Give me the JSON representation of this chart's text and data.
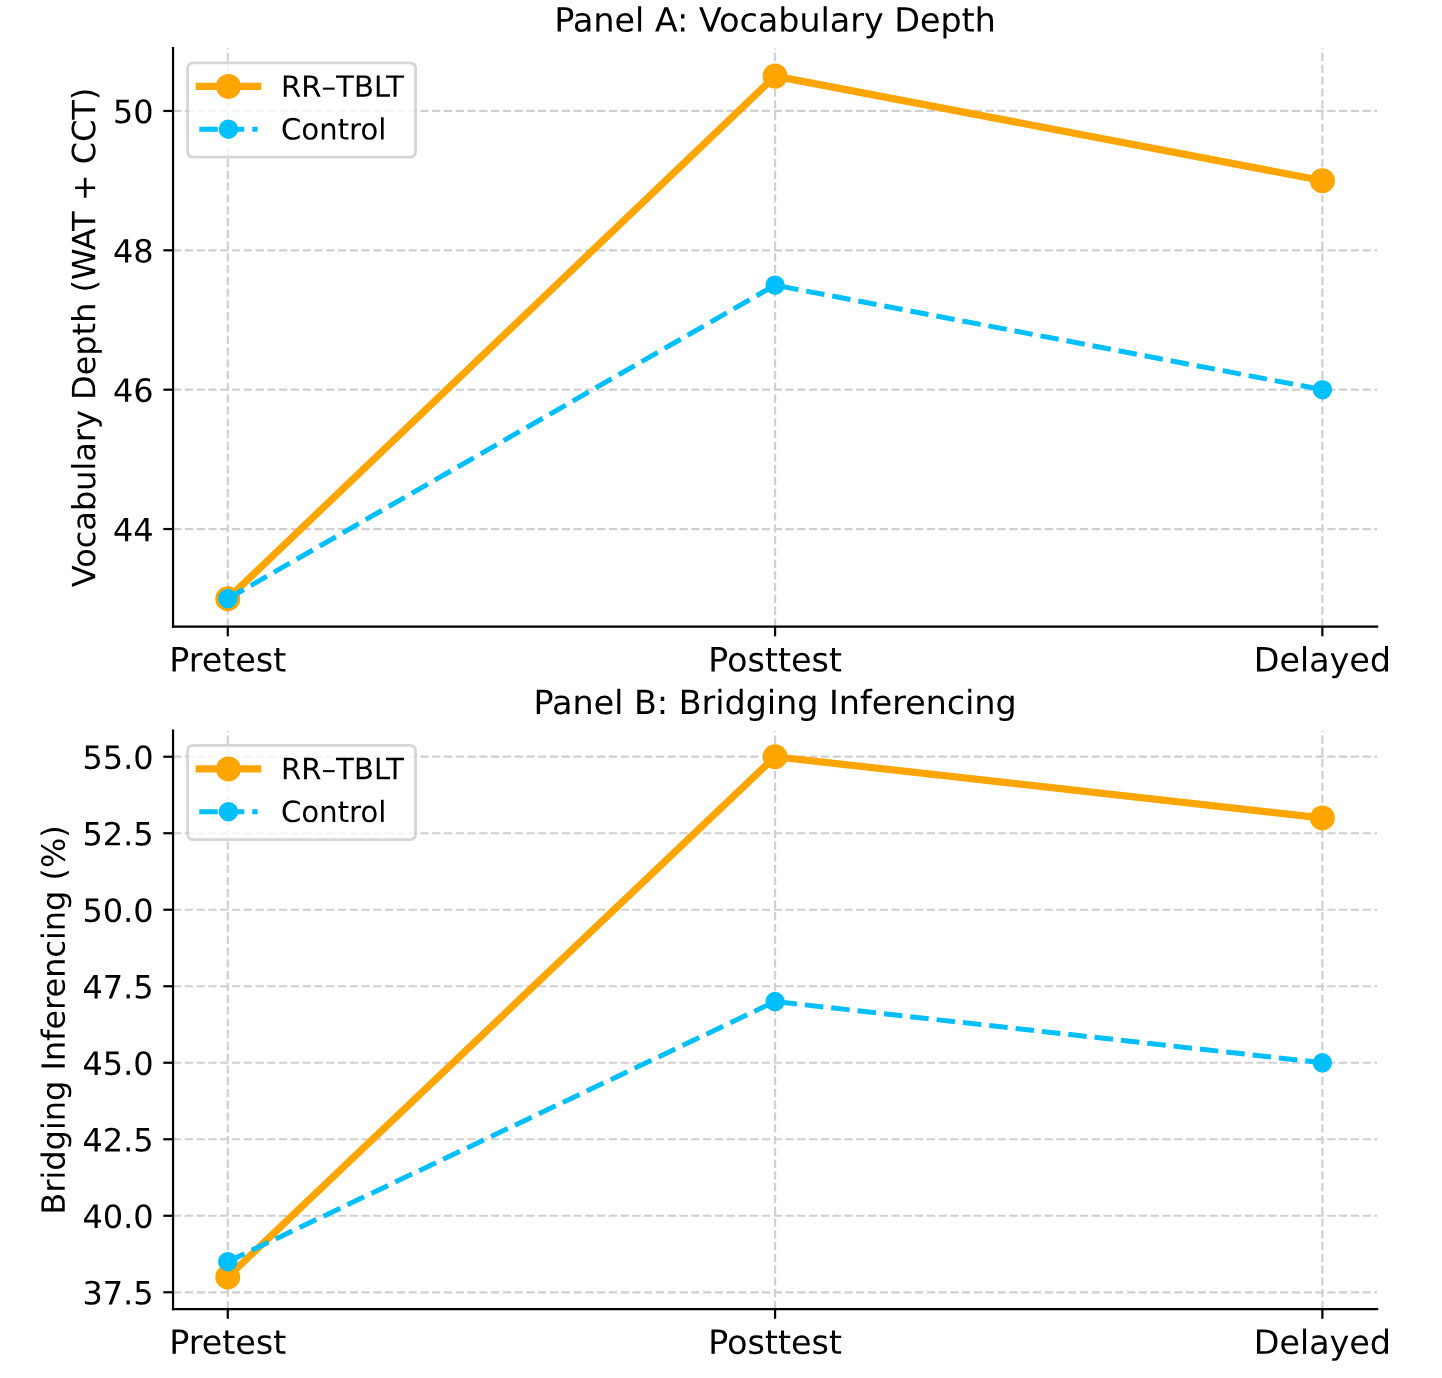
{
  "chart_data": [
    {
      "type": "line",
      "title": "Panel A: Vocabulary Depth",
      "ylabel": "Vocabulary Depth (WAT + CCT)",
      "categories": [
        "Pretest",
        "Posttest",
        "Delayed"
      ],
      "series": [
        {
          "name": "RR–TBLT",
          "color": "#ffa500",
          "values": [
            43,
            50.5,
            49
          ],
          "line_style": "solid"
        },
        {
          "name": "Control",
          "color": "#00bfff",
          "values": [
            43,
            47.5,
            46
          ],
          "line_style": "dashed"
        }
      ],
      "ylim": [
        42.6,
        50.9
      ],
      "yticks": [
        44,
        46,
        48,
        50
      ],
      "grid": true,
      "legend": "top left",
      "marker": "circle"
    },
    {
      "type": "line",
      "title": "Panel B: Bridging Inferencing",
      "ylabel": "Bridging Inferencing (%)",
      "categories": [
        "Pretest",
        "Posttest",
        "Delayed"
      ],
      "series": [
        {
          "name": "RR–TBLT",
          "color": "#ffa500",
          "values": [
            38,
            55,
            53
          ],
          "line_style": "solid"
        },
        {
          "name": "Control",
          "color": "#00bfff",
          "values": [
            38.5,
            47,
            45
          ],
          "line_style": "dashed"
        }
      ],
      "ylim": [
        36.95,
        55.85
      ],
      "yticks": [
        {
          "value": 37.5,
          "label": "37.5"
        },
        {
          "value": 40,
          "label": "40.0"
        },
        {
          "value": 42.5,
          "label": "42.5"
        },
        {
          "value": 45,
          "label": "45.0"
        },
        {
          "value": 47.5,
          "label": "47.5"
        },
        {
          "value": 50,
          "label": "50.0"
        },
        {
          "value": 52.5,
          "label": "52.5"
        },
        {
          "value": 55,
          "label": "55.0"
        }
      ],
      "grid": true,
      "legend": "top left",
      "marker": "circle"
    }
  ]
}
